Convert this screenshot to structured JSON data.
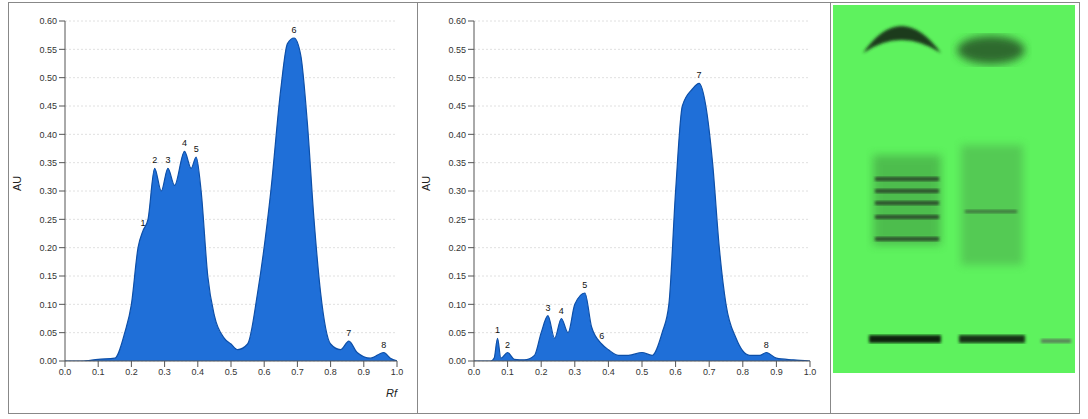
{
  "chart_data": [
    {
      "type": "area",
      "color": "#1f6fd8",
      "y_label": "AU",
      "x_label": "Rf",
      "grid": true,
      "xlim": [
        0,
        1
      ],
      "ylim": [
        0,
        0.6
      ],
      "xticks": [
        {
          "value": 0,
          "label": "0.0"
        },
        {
          "value": 0.1,
          "label": "0.1"
        },
        {
          "value": 0.2,
          "label": "0.2"
        },
        {
          "value": 0.3,
          "label": "0.3"
        },
        {
          "value": 0.4,
          "label": "0.4"
        },
        {
          "value": 0.5,
          "label": "0.5"
        },
        {
          "value": 0.6,
          "label": "0.6"
        },
        {
          "value": 0.7,
          "label": "0.7"
        },
        {
          "value": 0.8,
          "label": "0.8"
        },
        {
          "value": 0.9,
          "label": "0.9"
        },
        {
          "value": 1,
          "label": "1.0"
        }
      ],
      "yticks": [
        {
          "value": 0,
          "label": "0.00"
        },
        0.05,
        {
          "value": 0.1,
          "label": "0.10"
        },
        0.15,
        {
          "value": 0.2,
          "label": "0.20"
        },
        0.25,
        {
          "value": 0.3,
          "label": "0.30"
        },
        0.35,
        {
          "value": 0.4,
          "label": "0.40"
        },
        0.45,
        {
          "value": 0.5,
          "label": "0.50"
        },
        0.55,
        {
          "value": 0.6,
          "label": "0.60"
        }
      ],
      "x": [
        0,
        0.05,
        0.1,
        0.15,
        0.18,
        0.2,
        0.22,
        0.235,
        0.25,
        0.27,
        0.29,
        0.31,
        0.33,
        0.36,
        0.38,
        0.395,
        0.41,
        0.43,
        0.45,
        0.48,
        0.5,
        0.52,
        0.55,
        0.58,
        0.62,
        0.65,
        0.67,
        0.69,
        0.71,
        0.73,
        0.75,
        0.77,
        0.8,
        0.83,
        0.855,
        0.88,
        0.92,
        0.96,
        0.98,
        1
      ],
      "values": [
        0,
        0,
        0.003,
        0.005,
        0.05,
        0.1,
        0.2,
        0.23,
        0.25,
        0.34,
        0.3,
        0.34,
        0.31,
        0.37,
        0.34,
        0.36,
        0.3,
        0.15,
        0.08,
        0.04,
        0.03,
        0.02,
        0.03,
        0.12,
        0.3,
        0.48,
        0.56,
        0.57,
        0.54,
        0.42,
        0.25,
        0.12,
        0.03,
        0.02,
        0.035,
        0.015,
        0.005,
        0.015,
        0.005,
        0
      ],
      "annotations": [
        {
          "text": "1",
          "x": 0.235,
          "y": 0.23
        },
        {
          "text": "2",
          "x": 0.27,
          "y": 0.34
        },
        {
          "text": "3",
          "x": 0.31,
          "y": 0.34
        },
        {
          "text": "4",
          "x": 0.36,
          "y": 0.37
        },
        {
          "text": "5",
          "x": 0.395,
          "y": 0.36
        },
        {
          "text": "6",
          "x": 0.69,
          "y": 0.57
        },
        {
          "text": "7",
          "x": 0.855,
          "y": 0.035
        },
        {
          "text": "8",
          "x": 0.96,
          "y": 0.015
        }
      ]
    },
    {
      "type": "area",
      "color": "#1f6fd8",
      "y_label": "AU",
      "grid": true,
      "xlim": [
        0,
        1
      ],
      "ylim": [
        0,
        0.6
      ],
      "xticks": [
        {
          "value": 0,
          "label": "0.0"
        },
        {
          "value": 0.1,
          "label": "0.1"
        },
        {
          "value": 0.2,
          "label": "0.2"
        },
        {
          "value": 0.3,
          "label": "0.3"
        },
        {
          "value": 0.4,
          "label": "0.4"
        },
        {
          "value": 0.5,
          "label": "0.5"
        },
        {
          "value": 0.6,
          "label": "0.6"
        },
        {
          "value": 0.7,
          "label": "0.7"
        },
        {
          "value": 0.8,
          "label": "0.8"
        },
        {
          "value": 0.9,
          "label": "0.9"
        },
        {
          "value": 1,
          "label": "1.0"
        }
      ],
      "yticks": [
        {
          "value": 0,
          "label": "0.00"
        },
        0.05,
        {
          "value": 0.1,
          "label": "0.10"
        },
        0.15,
        {
          "value": 0.2,
          "label": "0.20"
        },
        0.25,
        {
          "value": 0.3,
          "label": "0.30"
        },
        0.35,
        {
          "value": 0.4,
          "label": "0.40"
        },
        0.45,
        {
          "value": 0.5,
          "label": "0.50"
        },
        0.55,
        {
          "value": 0.6,
          "label": "0.60"
        }
      ],
      "x": [
        0,
        0.05,
        0.06,
        0.07,
        0.08,
        0.1,
        0.12,
        0.15,
        0.18,
        0.2,
        0.22,
        0.24,
        0.26,
        0.28,
        0.3,
        0.33,
        0.35,
        0.38,
        0.4,
        0.43,
        0.46,
        0.5,
        0.53,
        0.56,
        0.58,
        0.6,
        0.62,
        0.65,
        0.67,
        0.69,
        0.71,
        0.73,
        0.75,
        0.78,
        0.82,
        0.85,
        0.87,
        0.9,
        0.95,
        1
      ],
      "values": [
        0,
        0,
        0.005,
        0.04,
        0.005,
        0.015,
        0.003,
        0.002,
        0.01,
        0.05,
        0.08,
        0.04,
        0.075,
        0.05,
        0.1,
        0.12,
        0.06,
        0.03,
        0.02,
        0.01,
        0.01,
        0.015,
        0.01,
        0.05,
        0.1,
        0.3,
        0.45,
        0.48,
        0.49,
        0.45,
        0.35,
        0.2,
        0.1,
        0.04,
        0.01,
        0.01,
        0.015,
        0.005,
        0.002,
        0
      ],
      "annotations": [
        {
          "text": "1",
          "x": 0.07,
          "y": 0.04
        },
        {
          "text": "2",
          "x": 0.1,
          "y": 0.015
        },
        {
          "text": "3",
          "x": 0.22,
          "y": 0.08
        },
        {
          "text": "4",
          "x": 0.26,
          "y": 0.075
        },
        {
          "text": "5",
          "x": 0.33,
          "y": 0.12
        },
        {
          "text": "6",
          "x": 0.38,
          "y": 0.03
        },
        {
          "text": "7",
          "x": 0.67,
          "y": 0.49
        },
        {
          "text": "8",
          "x": 0.87,
          "y": 0.015
        }
      ]
    }
  ]
}
